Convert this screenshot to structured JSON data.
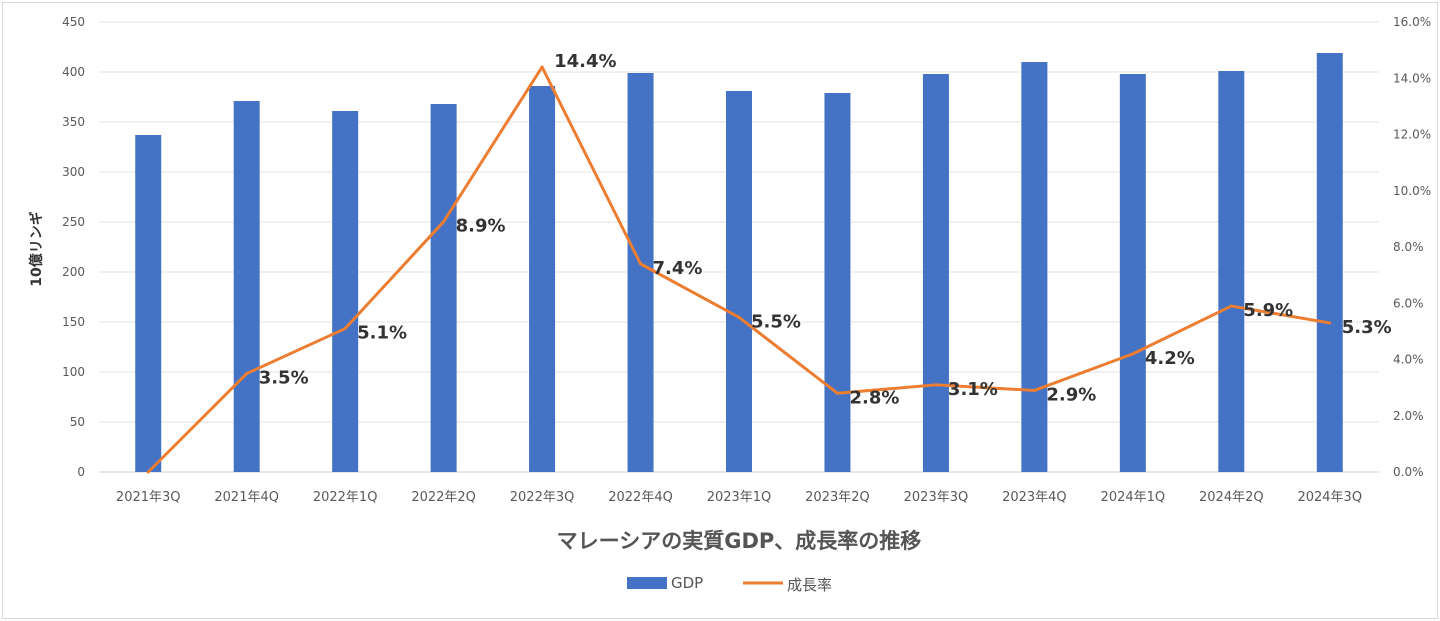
{
  "chart_data": {
    "type": "bar+line",
    "title": "マレーシアの実質GDP、成長率の推移",
    "ylabel": "10億リンギ",
    "xlabel": "",
    "categories": [
      "2021年3Q",
      "2021年4Q",
      "2022年1Q",
      "2022年2Q",
      "2022年3Q",
      "2022年4Q",
      "2023年1Q",
      "2023年2Q",
      "2023年3Q",
      "2023年4Q",
      "2024年1Q",
      "2024年2Q",
      "2024年3Q"
    ],
    "series": [
      {
        "name": "GDP",
        "type": "bar",
        "axis": "left",
        "color": "#4472c4",
        "values": [
          337,
          371,
          361,
          368,
          386,
          399,
          381,
          379,
          398,
          410,
          398,
          401,
          419
        ]
      },
      {
        "name": "成長率",
        "type": "line",
        "axis": "right",
        "color": "#ed7d31",
        "values": [
          0.0,
          3.5,
          5.1,
          8.9,
          14.4,
          7.4,
          5.5,
          2.8,
          3.1,
          2.9,
          4.2,
          5.9,
          5.3
        ],
        "labels": [
          "",
          "3.5%",
          "5.1%",
          "8.9%",
          "14.4%",
          "7.4%",
          "5.5%",
          "2.8%",
          "3.1%",
          "2.9%",
          "4.2%",
          "5.9%",
          "5.3%"
        ]
      }
    ],
    "ylim": [
      0,
      450
    ],
    "yticks": [
      "0",
      "50",
      "100",
      "150",
      "200",
      "250",
      "300",
      "350",
      "400",
      "450"
    ],
    "y2lim": [
      0,
      16
    ],
    "y2ticks": [
      "0.0%",
      "2.0%",
      "4.0%",
      "6.0%",
      "8.0%",
      "10.0%",
      "12.0%",
      "14.0%",
      "16.0%"
    ],
    "grid": true,
    "legend": {
      "placement": "bottom",
      "entries": [
        "GDP",
        "成長率"
      ]
    }
  }
}
